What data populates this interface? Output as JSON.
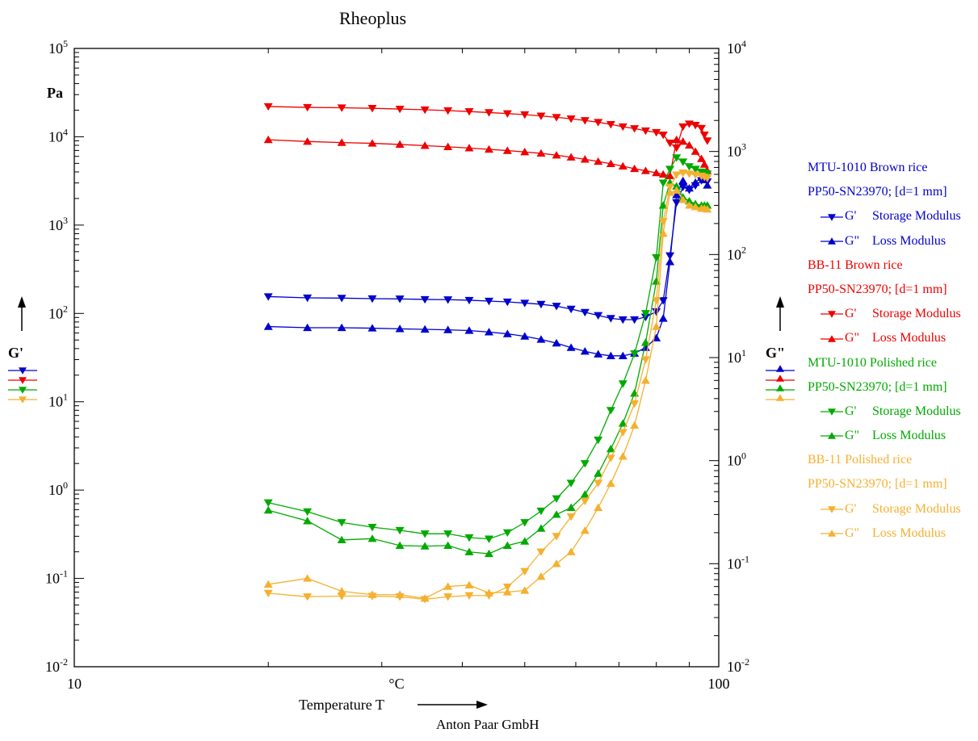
{
  "title": "Rheoplus",
  "footer": "Anton Paar GmbH",
  "colors": {
    "MTU-1010 Brown rice": "#0000cc",
    "BB-11 Brown rice": "#ee0000",
    "MTU-1010 Polished rice": "#00aa00",
    "BB-11 Polished rice": "#f5b030"
  },
  "chart_data": {
    "type": "line",
    "x_scale": "log",
    "y_scale": "log",
    "x_axis": {
      "label": "Temperature T",
      "unit": "°C",
      "range": [
        10,
        100
      ],
      "tick_labels": [
        "10",
        "100"
      ]
    },
    "y_left": {
      "label": "G'",
      "unit": "Pa",
      "range": [
        0.01,
        100000
      ],
      "tick_labels": [
        "10-2",
        "10-1",
        "100",
        "101",
        "102",
        "103",
        "104",
        "105"
      ]
    },
    "y_right": {
      "label": "G\"",
      "range": [
        0.01,
        10000
      ],
      "tick_labels": [
        "10-2",
        "10-1",
        "100",
        "101",
        "102",
        "103",
        "104"
      ]
    },
    "legend": [
      {
        "title": "MTU-1010 Brown rice",
        "subtitle": "PP50-SN23970; [d=1 mm]",
        "items": [
          {
            "symbol": "G'",
            "desc": "Storage Modulus"
          },
          {
            "symbol": "G\"",
            "desc": "Loss Modulus"
          }
        ]
      },
      {
        "title": "BB-11 Brown rice",
        "subtitle": "PP50-SN23970; [d=1 mm]",
        "items": [
          {
            "symbol": "G'",
            "desc": "Storage Modulus"
          },
          {
            "symbol": "G\"",
            "desc": "Loss Modulus"
          }
        ]
      },
      {
        "title": "MTU-1010 Polished rice",
        "subtitle": "PP50-SN23970; [d=1 mm]",
        "items": [
          {
            "symbol": "G'",
            "desc": "Storage Modulus"
          },
          {
            "symbol": "G\"",
            "desc": "Loss Modulus"
          }
        ]
      },
      {
        "title": "BB-11 Polished rice",
        "subtitle": "PP50-SN23970; [d=1 mm]",
        "items": [
          {
            "symbol": "G'",
            "desc": "Storage Modulus"
          },
          {
            "symbol": "G\"",
            "desc": "Loss Modulus"
          }
        ]
      }
    ],
    "series": [
      {
        "sample": "MTU-1010 Brown rice",
        "modulus": "G'",
        "axis": "left",
        "marker": "down",
        "x": [
          20,
          23,
          26,
          29,
          32,
          35,
          38,
          41,
          44,
          47,
          50,
          53,
          56,
          59,
          62,
          65,
          68,
          71,
          74,
          77,
          80,
          82,
          84,
          86,
          88,
          90,
          92,
          94,
          95,
          96
        ],
        "y": [
          155,
          150,
          149,
          147,
          146,
          144,
          143,
          141,
          138,
          135,
          131,
          127,
          121,
          112,
          103,
          95,
          88,
          85,
          85,
          91,
          105,
          140,
          450,
          1800,
          2700,
          2500,
          2800,
          3200,
          3500,
          3100
        ]
      },
      {
        "sample": "MTU-1010 Brown rice",
        "modulus": "G\"",
        "axis": "right",
        "marker": "up",
        "x": [
          20,
          23,
          26,
          29,
          32,
          35,
          38,
          41,
          44,
          47,
          50,
          53,
          56,
          59,
          62,
          65,
          68,
          71,
          74,
          77,
          80,
          82,
          84,
          86,
          88,
          90,
          92,
          94,
          95,
          96
        ],
        "y": [
          20,
          19.5,
          19.5,
          19.3,
          19.0,
          18.8,
          18.6,
          18.3,
          17.7,
          17.0,
          16.1,
          15.0,
          13.8,
          12.5,
          11.5,
          10.8,
          10.4,
          10.4,
          11.0,
          12.5,
          15.5,
          24,
          85,
          380,
          520,
          440,
          500,
          560,
          530,
          470
        ]
      },
      {
        "sample": "BB-11 Brown rice",
        "modulus": "G'",
        "axis": "left",
        "marker": "down",
        "x": [
          20,
          23,
          26,
          29,
          32,
          35,
          38,
          41,
          44,
          47,
          50,
          53,
          56,
          59,
          62,
          65,
          68,
          71,
          74,
          77,
          80,
          82,
          84,
          86,
          88,
          90,
          92,
          94,
          95,
          96
        ],
        "y": [
          22000,
          21500,
          21300,
          21000,
          20600,
          20200,
          19800,
          19300,
          18800,
          18300,
          17800,
          17200,
          16600,
          16000,
          15300,
          14600,
          13800,
          13000,
          12400,
          11700,
          11200,
          10500,
          8500,
          7500,
          13000,
          14000,
          13500,
          12500,
          10500,
          9000
        ]
      },
      {
        "sample": "BB-11 Brown rice",
        "modulus": "G\"",
        "axis": "right",
        "marker": "up",
        "x": [
          20,
          23,
          26,
          29,
          32,
          35,
          38,
          41,
          44,
          47,
          50,
          53,
          56,
          59,
          62,
          65,
          68,
          71,
          74,
          77,
          80,
          82,
          84,
          86,
          88,
          90,
          92,
          94,
          95,
          96
        ],
        "y": [
          1300,
          1250,
          1220,
          1200,
          1170,
          1140,
          1110,
          1080,
          1050,
          1020,
          990,
          960,
          920,
          880,
          840,
          800,
          760,
          720,
          680,
          650,
          620,
          600,
          580,
          1300,
          1250,
          1150,
          1000,
          850,
          750,
          650
        ]
      },
      {
        "sample": "MTU-1010 Polished rice",
        "modulus": "G'",
        "axis": "left",
        "marker": "down",
        "x": [
          20,
          23,
          26,
          29,
          32,
          35,
          38,
          41,
          44,
          47,
          50,
          53,
          56,
          59,
          62,
          65,
          68,
          71,
          74,
          77,
          80,
          82,
          84,
          86,
          88,
          90,
          92,
          94,
          95,
          96
        ],
        "y": [
          0.72,
          0.57,
          0.43,
          0.38,
          0.35,
          0.32,
          0.32,
          0.29,
          0.28,
          0.33,
          0.43,
          0.58,
          0.8,
          1.2,
          2.0,
          3.7,
          8.0,
          16,
          35,
          100,
          430,
          3000,
          4300,
          5800,
          5200,
          4600,
          4300,
          4000,
          3900,
          3800
        ]
      },
      {
        "sample": "MTU-1010 Polished rice",
        "modulus": "G\"",
        "axis": "right",
        "marker": "up",
        "x": [
          20,
          23,
          26,
          29,
          32,
          35,
          38,
          41,
          44,
          47,
          50,
          53,
          56,
          59,
          62,
          65,
          68,
          71,
          74,
          77,
          80,
          82,
          84,
          86,
          88,
          90,
          92,
          94,
          95,
          96
        ],
        "y": [
          0.33,
          0.26,
          0.17,
          0.175,
          0.15,
          0.148,
          0.15,
          0.13,
          0.125,
          0.15,
          0.165,
          0.22,
          0.3,
          0.35,
          0.47,
          0.75,
          1.3,
          2.3,
          4.5,
          14,
          55,
          300,
          500,
          460,
          360,
          330,
          310,
          300,
          300,
          300
        ]
      },
      {
        "sample": "BB-11 Polished rice",
        "modulus": "G'",
        "axis": "left",
        "marker": "down",
        "x": [
          20,
          23,
          26,
          29,
          32,
          35,
          38,
          41,
          44,
          47,
          50,
          53,
          56,
          59,
          62,
          65,
          68,
          71,
          74,
          77,
          80,
          82,
          84,
          86,
          88,
          90,
          92,
          94,
          95,
          96
        ],
        "y": [
          0.068,
          0.062,
          0.063,
          0.063,
          0.062,
          0.058,
          0.062,
          0.064,
          0.064,
          0.08,
          0.12,
          0.2,
          0.3,
          0.5,
          0.75,
          1.2,
          2.3,
          4.5,
          9.5,
          30,
          140,
          1100,
          2700,
          3700,
          3900,
          3800,
          3700,
          3600,
          3500,
          3400
        ]
      },
      {
        "sample": "BB-11 Polished rice",
        "modulus": "G\"",
        "axis": "right",
        "marker": "up",
        "x": [
          20,
          23,
          26,
          29,
          32,
          35,
          38,
          41,
          44,
          47,
          50,
          53,
          56,
          59,
          62,
          65,
          68,
          71,
          74,
          77,
          80,
          82,
          84,
          86,
          88,
          90,
          92,
          94,
          95,
          96
        ],
        "y": [
          0.063,
          0.072,
          0.054,
          0.05,
          0.05,
          0.046,
          0.06,
          0.062,
          0.052,
          0.053,
          0.055,
          0.075,
          0.1,
          0.13,
          0.21,
          0.35,
          0.6,
          1.1,
          2.2,
          6,
          20,
          160,
          400,
          420,
          340,
          300,
          290,
          280,
          280,
          275
        ]
      }
    ]
  }
}
